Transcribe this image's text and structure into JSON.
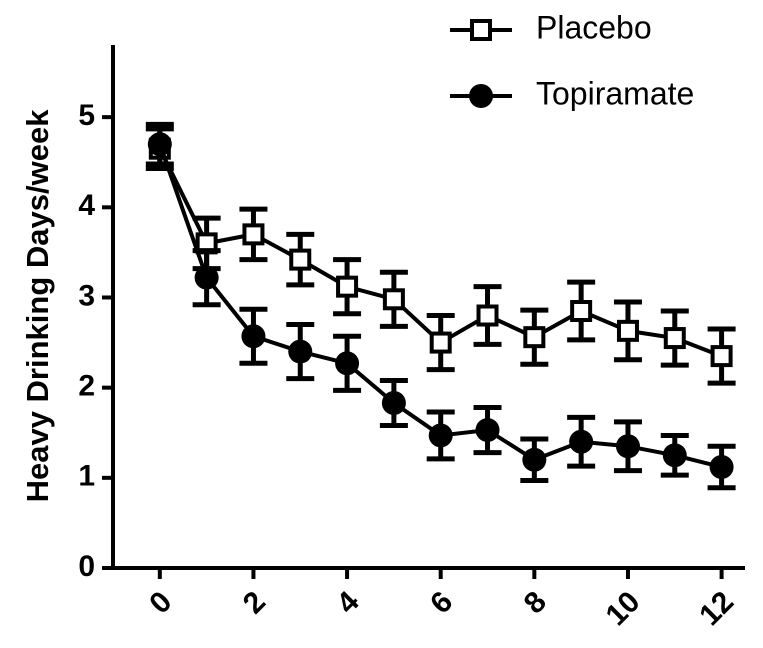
{
  "chart_data": {
    "type": "line",
    "y_label": "Heavy Drinking Days/week",
    "x": [
      0,
      1,
      2,
      3,
      4,
      5,
      6,
      7,
      8,
      9,
      10,
      11,
      12
    ],
    "series": [
      {
        "name": "Placebo",
        "color": "#000000",
        "marker": "open-square",
        "values": [
          4.65,
          3.6,
          3.7,
          3.42,
          3.12,
          2.98,
          2.5,
          2.8,
          2.56,
          2.85,
          2.63,
          2.55,
          2.35
        ],
        "errors": [
          0.22,
          0.28,
          0.28,
          0.28,
          0.3,
          0.3,
          0.3,
          0.32,
          0.3,
          0.32,
          0.32,
          0.3,
          0.3
        ]
      },
      {
        "name": "Topiramate",
        "color": "#000000",
        "marker": "filled-circle",
        "values": [
          4.7,
          3.22,
          2.57,
          2.4,
          2.27,
          1.83,
          1.47,
          1.53,
          1.2,
          1.4,
          1.35,
          1.25,
          1.12
        ],
        "errors": [
          0.22,
          0.3,
          0.3,
          0.3,
          0.3,
          0.25,
          0.26,
          0.25,
          0.23,
          0.27,
          0.27,
          0.22,
          0.23
        ]
      }
    ],
    "xlim": [
      -1,
      12.5
    ],
    "xticks": [
      0,
      2,
      4,
      6,
      8,
      10,
      12
    ],
    "ylim": [
      0,
      5.8
    ],
    "yticks": [
      0,
      1,
      2,
      3,
      4,
      5
    ],
    "grid": false,
    "legend": "top-right"
  }
}
